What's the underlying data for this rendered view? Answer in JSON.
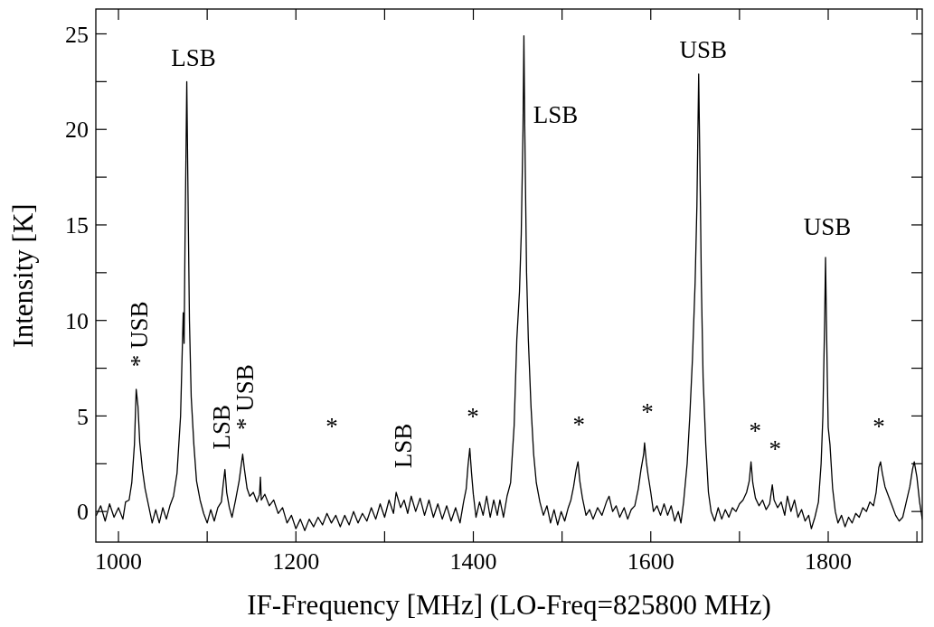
{
  "chart_data": {
    "type": "line",
    "xlabel": "IF-Frequency [MHz] (LO-Freq=825800 MHz)",
    "ylabel": "Intensity [K]",
    "xlim": [
      974.5,
      1906
    ],
    "ylim": [
      -1.6,
      26.3
    ],
    "xticks": [
      1000,
      {
        "value": 1100,
        "label": null
      },
      1200,
      {
        "value": 1300,
        "label": null
      },
      1400,
      {
        "value": 1500,
        "label": null
      },
      1600,
      {
        "value": 1700,
        "label": null
      },
      1800,
      {
        "value": 1900,
        "label": null
      }
    ],
    "yticks": [
      0,
      {
        "value": 2.5,
        "label": null
      },
      5,
      {
        "value": 7.5,
        "label": null
      },
      10,
      {
        "value": 12.5,
        "label": null
      },
      15,
      {
        "value": 17.5,
        "label": null
      },
      20,
      {
        "value": 22.5,
        "label": null
      },
      25
    ],
    "grid": false,
    "marker": "none",
    "line_style": "solid",
    "annotations": [
      {
        "text": "* USB",
        "x": 1020,
        "y": 6.4
      },
      {
        "text": "LSB",
        "x": 1077,
        "y": 22.5
      },
      {
        "text": "LSB",
        "x": 1120,
        "y": 2.2
      },
      {
        "text": "* USB",
        "x": 1140,
        "y": 3.0
      },
      "*",
      {
        "text": "LSB",
        "x": 1322,
        "y": 0.6
      },
      {
        "text": "*",
        "x": 1396,
        "y": 3.3
      },
      {
        "text": "LSB",
        "x": 1457,
        "y": 24.9
      },
      {
        "text": "*",
        "x": 1518,
        "y": 2.6
      },
      {
        "text": "*",
        "x": 1593,
        "y": 3.6
      },
      {
        "text": "USB",
        "x": 1654,
        "y": 22.9
      },
      {
        "text": "*",
        "x": 1713,
        "y": 2.6
      },
      {
        "text": "*",
        "x": 1737,
        "y": 1.4
      },
      {
        "text": "USB",
        "x": 1797,
        "y": 13.3
      },
      {
        "text": "*",
        "x": 1859,
        "y": 2.6
      }
    ],
    "series": [
      {
        "color": "#000000",
        "x": [
          975,
          980,
          985,
          990,
          995,
          1000,
          1005,
          1008,
          1012,
          1015,
          1018,
          1020,
          1022,
          1024,
          1027,
          1030,
          1034,
          1038,
          1042,
          1046,
          1050,
          1054,
          1058,
          1062,
          1066,
          1070,
          1073,
          1074,
          1075,
          1077,
          1079,
          1080,
          1082,
          1085,
          1088,
          1092,
          1096,
          1100,
          1104,
          1108,
          1112,
          1116,
          1118,
          1120,
          1122,
          1125,
          1128,
          1132,
          1136,
          1140,
          1142,
          1145,
          1148,
          1152,
          1156,
          1159,
          1160,
          1161,
          1165,
          1170,
          1175,
          1180,
          1185,
          1190,
          1195,
          1200,
          1205,
          1210,
          1215,
          1220,
          1225,
          1230,
          1235,
          1240,
          1245,
          1250,
          1255,
          1260,
          1265,
          1270,
          1275,
          1280,
          1285,
          1290,
          1295,
          1300,
          1305,
          1310,
          1313,
          1318,
          1322,
          1326,
          1330,
          1335,
          1340,
          1345,
          1350,
          1355,
          1360,
          1365,
          1370,
          1375,
          1380,
          1385,
          1389,
          1392,
          1394,
          1396,
          1398,
          1400,
          1403,
          1407,
          1411,
          1415,
          1419,
          1423,
          1427,
          1430,
          1434,
          1438,
          1442,
          1446,
          1449,
          1452,
          1454,
          1456,
          1457,
          1458,
          1460,
          1462,
          1465,
          1468,
          1471,
          1475,
          1479,
          1483,
          1487,
          1491,
          1495,
          1499,
          1503,
          1507,
          1510,
          1513,
          1516,
          1518,
          1520,
          1523,
          1527,
          1531,
          1535,
          1540,
          1545,
          1550,
          1553,
          1557,
          1561,
          1565,
          1570,
          1574,
          1578,
          1582,
          1586,
          1589,
          1592,
          1593,
          1595,
          1597,
          1600,
          1603,
          1607,
          1611,
          1615,
          1619,
          1623,
          1627,
          1631,
          1634,
          1637,
          1641,
          1644,
          1647,
          1650,
          1652,
          1654,
          1656,
          1657,
          1659,
          1662,
          1665,
          1668,
          1672,
          1676,
          1680,
          1684,
          1688,
          1692,
          1696,
          1700,
          1704,
          1708,
          1711,
          1713,
          1715,
          1718,
          1722,
          1726,
          1730,
          1734,
          1737,
          1739,
          1743,
          1747,
          1751,
          1754,
          1758,
          1762,
          1766,
          1770,
          1774,
          1778,
          1781,
          1785,
          1789,
          1792,
          1794,
          1796,
          1797,
          1798,
          1799,
          1800,
          1802,
          1805,
          1808,
          1811,
          1815,
          1819,
          1823,
          1827,
          1831,
          1835,
          1839,
          1843,
          1847,
          1851,
          1854,
          1857,
          1859,
          1861,
          1864,
          1868,
          1872,
          1876,
          1880,
          1884,
          1888,
          1892,
          1895,
          1897,
          1900,
          1903,
          1906
        ],
        "values": [
          -0.2,
          0.3,
          -0.5,
          0.4,
          -0.3,
          0.2,
          -0.4,
          0.5,
          0.6,
          1.5,
          3.5,
          6.4,
          5.5,
          3.6,
          2.2,
          1.2,
          0.3,
          -0.6,
          0.1,
          -0.6,
          0.2,
          -0.4,
          0.3,
          0.8,
          2.0,
          5.0,
          10.4,
          8.8,
          14,
          22.5,
          14,
          10,
          6,
          3.5,
          1.6,
          0.6,
          -0.1,
          -0.6,
          0.1,
          -0.5,
          0.2,
          0.5,
          1.4,
          2.2,
          1.0,
          0.2,
          -0.3,
          0.6,
          1.6,
          3.0,
          2.2,
          1.2,
          0.8,
          1.0,
          0.5,
          0.9,
          1.8,
          0.6,
          0.9,
          0.3,
          0.6,
          -0.1,
          0.2,
          -0.6,
          -0.2,
          -0.9,
          -0.4,
          -1.0,
          -0.4,
          -0.8,
          -0.3,
          -0.7,
          -0.1,
          -0.6,
          -0.2,
          -0.8,
          -0.2,
          -0.7,
          0.0,
          -0.6,
          -0.1,
          -0.5,
          0.2,
          -0.4,
          0.4,
          -0.3,
          0.6,
          -0.1,
          1.0,
          0.2,
          0.6,
          -0.1,
          0.8,
          0.0,
          0.7,
          -0.2,
          0.6,
          -0.3,
          0.4,
          -0.4,
          0.3,
          -0.5,
          0.2,
          -0.6,
          0.5,
          1.2,
          2.4,
          3.3,
          2.0,
          0.9,
          -0.3,
          0.5,
          -0.2,
          0.8,
          -0.3,
          0.6,
          -0.2,
          0.6,
          -0.3,
          0.8,
          1.5,
          4.5,
          9,
          11.5,
          14.5,
          20,
          24.9,
          20,
          12.5,
          9,
          5.5,
          3.0,
          1.5,
          0.5,
          -0.2,
          0.3,
          -0.6,
          0.1,
          -0.7,
          0.0,
          -0.5,
          0.2,
          0.6,
          1.3,
          2.2,
          2.6,
          1.6,
          0.7,
          -0.2,
          0.1,
          -0.4,
          0.2,
          -0.2,
          0.5,
          0.8,
          0.0,
          0.3,
          -0.3,
          0.2,
          -0.4,
          0.1,
          0.3,
          1.2,
          2.2,
          3.0,
          3.6,
          2.6,
          1.9,
          1.0,
          0.0,
          0.3,
          -0.2,
          0.4,
          -0.2,
          0.3,
          -0.5,
          0.0,
          -0.6,
          0.5,
          2.5,
          5.0,
          8,
          12,
          16,
          22.9,
          16,
          12,
          7,
          3.5,
          1.0,
          0.0,
          -0.5,
          0.2,
          -0.4,
          0.1,
          -0.3,
          0.2,
          0.0,
          0.4,
          0.6,
          1.0,
          1.6,
          2.6,
          1.5,
          0.7,
          0.3,
          0.6,
          0.1,
          0.4,
          1.4,
          0.6,
          0.2,
          0.5,
          -0.2,
          0.8,
          0.0,
          0.6,
          -0.3,
          0.1,
          -0.5,
          -0.2,
          -0.9,
          -0.3,
          0.5,
          2.5,
          5,
          10,
          13.3,
          10,
          7,
          4.4,
          3.5,
          1.2,
          0.0,
          -0.6,
          -0.2,
          -0.8,
          -0.3,
          -0.6,
          -0.1,
          -0.3,
          0.2,
          0.0,
          0.5,
          0.3,
          1.0,
          2.3,
          2.6,
          2.0,
          1.3,
          0.8,
          0.3,
          -0.2,
          -0.5,
          -0.3,
          0.5,
          1.3,
          2.2,
          2.6,
          1.8,
          0.5,
          -0.4
        ]
      }
    ]
  }
}
